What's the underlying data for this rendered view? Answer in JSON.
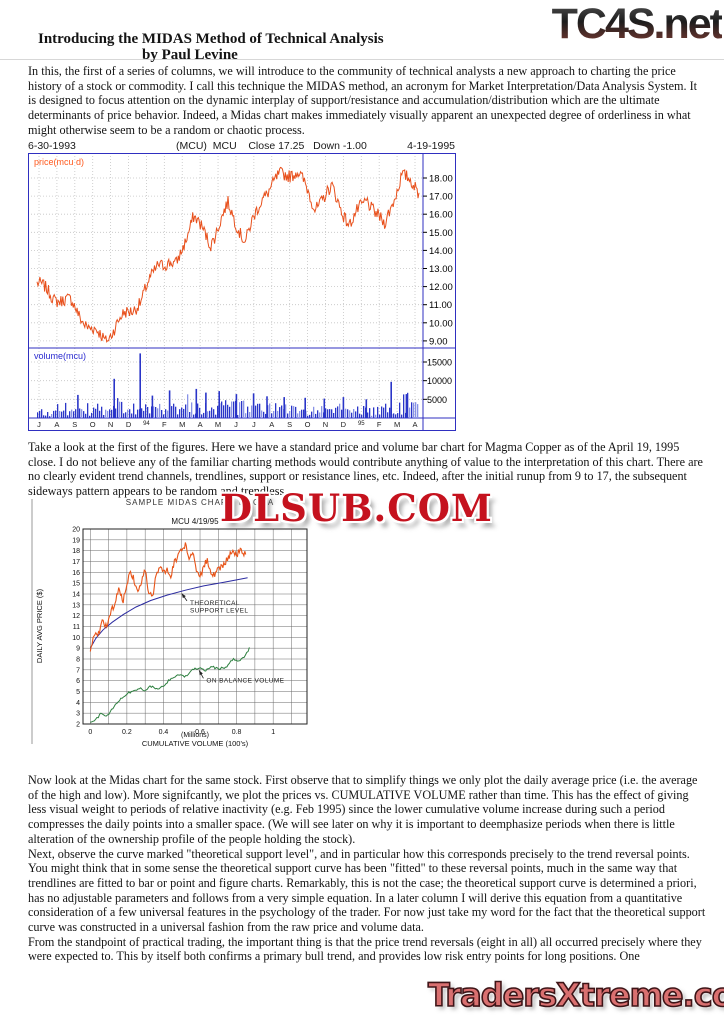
{
  "page": {
    "tc4s_logo": "TC4S.net",
    "title_line1": "Introducing the MIDAS Method of Technical Analysis",
    "title_line2": "by Paul Levine",
    "paragraph1": "In this, the first of a series of columns, we will introduce to the community of technical analysts a new approach to charting the price history of a stock or commodity. I call this technique the MIDAS method, an acronym for Market Interpretation/Data Analysis System. It is designed to focus attention on the dynamic interplay of support/resistance and accumulation/distribution which are the ultimate determinants of price behavior. Indeed, a Midas chart makes immediately visually apparent an unexpected degree of orderliness in what might otherwise seem to be a random or chaotic process.",
    "paragraph2": "Take a look at the first of the figures. Here we have a standard price and volume bar chart for Magma Copper as of the April 19, 1995 close. I do not believe any of the familiar charting methods would contribute anything of value to the interpretation of this chart. There are no clearly evident trend channels, trendlines, support or resistance lines, etc. Indeed, after the initial runup from 9 to 17, the subsequent sideways pattern appears to be random and trendless.",
    "paragraph3": "Now look at the Midas chart for the same stock. First observe that to simplify things we only plot the daily average price (i.e. the average of the high and low). More signifcantly, we plot the prices vs. CUMULATIVE VOLUME rather than time. This has the effect of giving less visual weight to periods of relative inactivity (e.g. Feb 1995) since the lower cumulative volume increase during such a period compresses the daily points into a smaller space. (We will see later on why it is important to deemphasize periods when there is little alteration of the ownership profile of the people holding the stock).",
    "paragraph4": "Next, observe the curve marked \"theoretical support level\", and in particular how this corresponds precisely to the trend reversal points. You might think that in some sense the theoretical support curve has been \"fitted\" to these reversal points, much in the same way that trendlines are fitted to bar or point and figure charts. Remarkably, this is not the case; the theoretical support curve is determined a priori, has no adjustable parameters and follows from a very simple equation. In a later column I will derive this equation from a quantitative consideration of a few universal features in the psychology of the trader. For now just take my word for the fact that the theoretical support curve was constructed in a universal fashion from the raw price and volume data.",
    "paragraph5": "From the standpoint of practical trading, the important thing is that the price trend reversals (eight in all) all occurred precisely where they were expected to. This by itself both confirms a primary bull trend, and provides low risk entry points for long positions. One",
    "watermark_mid": "DLSUB.COM",
    "watermark_bottom": "TradersXtreme.com"
  },
  "chart_data": [
    {
      "type": "line+bar",
      "description": "daily price and volume bar chart, Magma Copper",
      "header_left": "6-30-1993",
      "header_center": "(MCU)  MCU    Close 17.25   Down -1.00",
      "header_right": "4-19-1995",
      "symbol": "MCU",
      "close": 17.25,
      "change": -1.0,
      "price_label": "price(mcu d)",
      "volume_label": "volume(mcu)",
      "price_ticks": [
        18,
        17,
        16,
        15,
        14,
        13,
        12,
        11,
        10,
        9
      ],
      "volume_ticks": [
        15000,
        10000,
        5000
      ],
      "x_labels": [
        "J",
        "A",
        "S",
        "O",
        "N",
        "D",
        "94",
        "F",
        "M",
        "A",
        "M",
        "J",
        "J",
        "A",
        "S",
        "O",
        "N",
        "D",
        "95",
        "F",
        "M",
        "A"
      ],
      "price_monthly": [
        12.2,
        11.4,
        11.1,
        9.7,
        9.1,
        10.4,
        11.2,
        13.4,
        13.1,
        15.9,
        14.4,
        16.5,
        14.5,
        17.0,
        18.1,
        18.4,
        16.4,
        17.4,
        15.4,
        16.9,
        15.3,
        18.2,
        17.25
      ],
      "volume_monthly_avg": [
        1800,
        1500,
        1600,
        2200,
        3200,
        3800,
        2600,
        3000,
        3200,
        3000,
        3400,
        3200,
        3000,
        2800,
        2600,
        2400,
        2200,
        2600,
        1800,
        2200,
        3000,
        3400
      ],
      "volume_spikes": [
        {
          "x": 0.105,
          "v": 6200
        },
        {
          "x": 0.2,
          "v": 10500
        },
        {
          "x": 0.268,
          "v": 17300
        },
        {
          "x": 0.3,
          "v": 6000
        },
        {
          "x": 0.345,
          "v": 7400
        },
        {
          "x": 0.415,
          "v": 7800
        },
        {
          "x": 0.44,
          "v": 6800
        },
        {
          "x": 0.475,
          "v": 7200
        },
        {
          "x": 0.52,
          "v": 6400
        },
        {
          "x": 0.565,
          "v": 6600
        },
        {
          "x": 0.6,
          "v": 5800
        },
        {
          "x": 0.645,
          "v": 5600
        },
        {
          "x": 0.7,
          "v": 5400
        },
        {
          "x": 0.75,
          "v": 5200
        },
        {
          "x": 0.8,
          "v": 5600
        },
        {
          "x": 0.86,
          "v": 5000
        },
        {
          "x": 0.925,
          "v": 9700
        },
        {
          "x": 0.965,
          "v": 6400
        }
      ],
      "ylim_price": [
        8.9,
        18.7
      ],
      "ylim_volume": [
        0,
        17500
      ],
      "colors": {
        "price": "#e8501c",
        "volume": "#2a35c8",
        "volume_light": "#8892e6",
        "frame": "#2f2fc0",
        "label_price": "#ff5a1e",
        "label_volume": "#2a2ad0",
        "grid": "#c4c4c4"
      }
    },
    {
      "type": "line",
      "title": "SAMPLE MIDAS CHART: MAGMA",
      "subtitle": "MCU   4/19/95",
      "ylabel": "DAILY AVG PRICE ($)",
      "xlabel_top": "(Millions)",
      "xlabel_bottom": "CUMULATIVE VOLUME (100's)",
      "x_ticks": [
        0,
        0.2,
        0.4,
        0.6,
        0.8,
        1
      ],
      "y_ticks": [
        2,
        3,
        4,
        5,
        6,
        7,
        8,
        9,
        10,
        11,
        12,
        13,
        14,
        15,
        16,
        17,
        18,
        19,
        20
      ],
      "xlim": [
        -0.04,
        1.185
      ],
      "ylim": [
        2,
        20
      ],
      "grid": true,
      "series": [
        {
          "name": "daily average price",
          "color": "#e85418",
          "noise": 0.32,
          "x": [
            0,
            0.02,
            0.05,
            0.07,
            0.09,
            0.12,
            0.14,
            0.16,
            0.18,
            0.2,
            0.22,
            0.24,
            0.26,
            0.28,
            0.3,
            0.32,
            0.34,
            0.36,
            0.38,
            0.4,
            0.42,
            0.44,
            0.46,
            0.48,
            0.5,
            0.52,
            0.54,
            0.56,
            0.58,
            0.6,
            0.62,
            0.64,
            0.66,
            0.68,
            0.7,
            0.72,
            0.74,
            0.76,
            0.78,
            0.8,
            0.82,
            0.84,
            0.85
          ],
          "y": [
            9.0,
            10.1,
            10.4,
            11.6,
            10.9,
            12.6,
            13.6,
            14.5,
            13.2,
            15.1,
            16.0,
            15.3,
            14.2,
            15.0,
            16.3,
            14.1,
            13.8,
            15.7,
            16.5,
            15.9,
            16.4,
            15.7,
            17.0,
            17.6,
            18.1,
            18.5,
            17.4,
            17.9,
            16.1,
            15.7,
            16.4,
            17.3,
            15.6,
            15.9,
            16.2,
            16.6,
            17.0,
            17.5,
            18.1,
            17.6,
            18.3,
            17.8,
            17.5
          ]
        },
        {
          "name": "theoretical support level",
          "color": "#2b2ba0",
          "noise": 0,
          "x": [
            0,
            0.03,
            0.07,
            0.12,
            0.18,
            0.25,
            0.33,
            0.42,
            0.52,
            0.62,
            0.72,
            0.8,
            0.86
          ],
          "y": [
            9.0,
            9.9,
            10.7,
            11.4,
            12.1,
            12.8,
            13.4,
            13.9,
            14.35,
            14.75,
            15.05,
            15.3,
            15.5
          ]
        },
        {
          "name": "on balance volume",
          "color": "#2e8040",
          "noise": 0.1,
          "x": [
            0,
            0.03,
            0.06,
            0.08,
            0.1,
            0.13,
            0.16,
            0.2,
            0.24,
            0.27,
            0.3,
            0.33,
            0.36,
            0.4,
            0.44,
            0.48,
            0.52,
            0.56,
            0.6,
            0.63,
            0.66,
            0.7,
            0.74,
            0.78,
            0.81,
            0.84,
            0.87
          ],
          "y": [
            2.1,
            2.4,
            3.0,
            2.7,
            2.9,
            3.6,
            4.2,
            4.8,
            5.1,
            5.3,
            5.0,
            5.5,
            5.2,
            5.5,
            6.2,
            6.5,
            6.4,
            7.1,
            7.2,
            6.9,
            7.3,
            7.1,
            7.2,
            8.0,
            7.8,
            8.1,
            9.0
          ]
        }
      ],
      "annotations": [
        {
          "lines": [
            "THEORETICAL",
            "SUPPORT LEVEL"
          ],
          "tx": 0.545,
          "ty": 13.0,
          "ax": 0.5,
          "ay": 14.05
        },
        {
          "lines": [
            "ON BALANCE VOLUME"
          ],
          "tx": 0.635,
          "ty": 5.85,
          "ax": 0.595,
          "ay": 6.95
        }
      ]
    }
  ]
}
